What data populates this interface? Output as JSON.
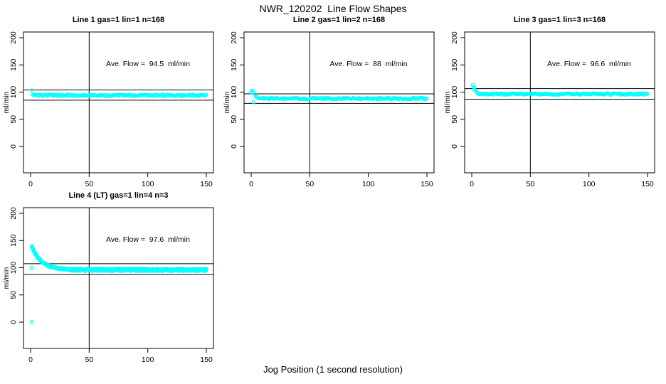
{
  "page": {
    "main_title": "NWR_120202  Line Flow Shapes",
    "x_axis_label": "Jog Position (1 second resolution)",
    "background_color": "#FFFFFF",
    "axis_color": "#000000"
  },
  "chart_data": {
    "type": "scatter",
    "point_style": "open-circle",
    "point_color": "#00FFFF",
    "axis_color": "#000000",
    "y_label": "ml/min",
    "x_ticks": [
      0,
      50,
      100,
      150
    ],
    "y_ticks": [
      0,
      50,
      100,
      150,
      200
    ],
    "xlim": [
      0,
      150
    ],
    "ylim": [
      0,
      200
    ],
    "grid": false,
    "vertical_ref_x": 50,
    "panels": [
      {
        "title": "Line 1 gas=1 lin=1 n=168",
        "annotation": "Ave. Flow =  94.5  ml/min",
        "ave_flow": 94.5,
        "n": 168,
        "ref_lines": [
          103.9,
          85.1
        ],
        "transient_points": [
          [
            1,
            103
          ]
        ],
        "outlier_points": [],
        "band": {
          "x_from": 2,
          "x_to": 150,
          "x_step": 1,
          "base": 94,
          "amplitude": 1.6,
          "per_x": 1
        }
      },
      {
        "title": "Line 2 gas=1 lin=2 n=168",
        "annotation": "Ave. Flow =  88  ml/min",
        "ave_flow": 88,
        "n": 168,
        "ref_lines": [
          96.8,
          79.2
        ],
        "transient_points": [
          [
            0,
            100
          ],
          [
            1,
            103
          ],
          [
            2,
            100
          ],
          [
            3,
            96
          ],
          [
            4,
            92.5
          ],
          [
            5,
            90.5
          ],
          [
            6,
            89.2
          ]
        ],
        "outlier_points": [
          [
            2,
            81
          ]
        ],
        "band": {
          "x_from": 7,
          "x_to": 150,
          "x_step": 1,
          "base": 88,
          "amplitude": 1.4,
          "per_x": 1
        }
      },
      {
        "title": "Line 3 gas=1 lin=3 n=168",
        "annotation": "Ave. Flow =  96.6  ml/min",
        "ave_flow": 96.6,
        "n": 168,
        "ref_lines": [
          106.3,
          86.9
        ],
        "transient_points": [
          [
            1,
            113
          ],
          [
            2,
            109
          ],
          [
            2,
            105.5
          ],
          [
            3,
            103
          ],
          [
            4,
            100.5
          ],
          [
            5,
            98.5
          ]
        ],
        "outlier_points": [],
        "band": {
          "x_from": 6,
          "x_to": 150,
          "x_step": 1,
          "base": 96.5,
          "amplitude": 1.4,
          "per_x": 1
        }
      },
      {
        "title": "Line 4 (LT) gas=1 lin=4 n=3",
        "annotation": "Ave. Flow =  97.6  ml/min",
        "ave_flow": 97.6,
        "n": 3,
        "ref_lines": [
          107.4,
          87.8
        ],
        "transient_points": [],
        "outlier_points": [
          [
            1,
            0.5
          ],
          [
            1,
            100
          ]
        ],
        "decay": {
          "x_from": 1,
          "x_to": 34,
          "x_step": 0.5,
          "base": 96.5,
          "amplitude": 43,
          "tau": 8,
          "noise": 1.3,
          "per_x": 2
        },
        "band": {
          "x_from": 34,
          "x_to": 150,
          "x_step": 0.6,
          "base": 96.2,
          "amplitude": 2.3,
          "per_x": 2
        }
      }
    ]
  }
}
